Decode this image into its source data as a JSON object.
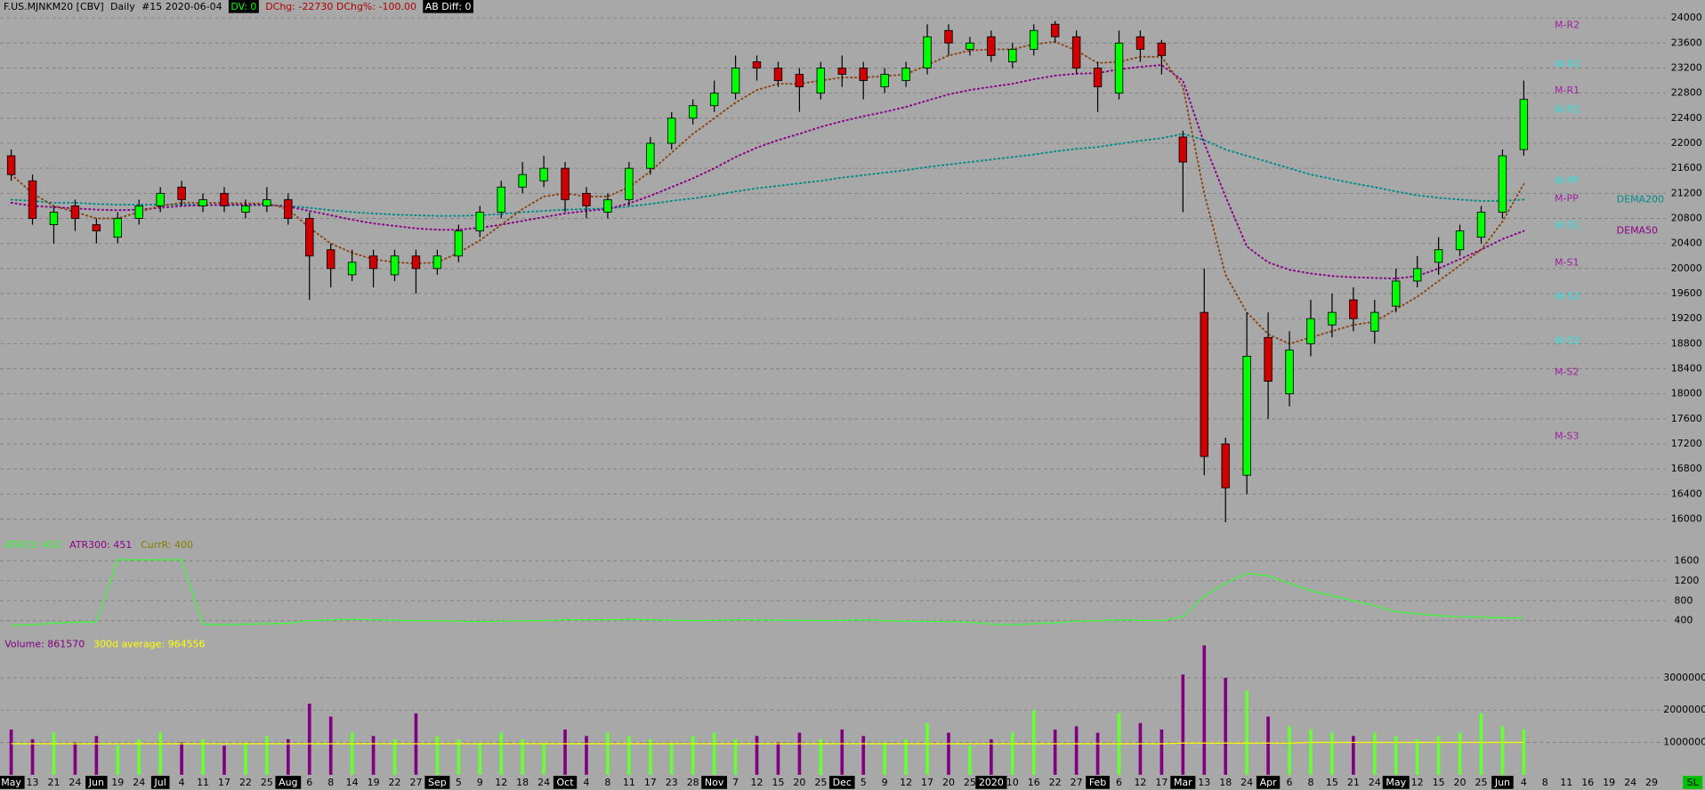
{
  "chart_data": [
    {
      "type": "candlestick",
      "title": "F.US.MJNKM20 [CBV]",
      "interval": "Daily",
      "bar_label": "#15 2020-06-04",
      "dv": "DV: 0",
      "dchg": "DChg: -22730 DChg%: -100.00",
      "ab_diff": "AB Diff: 0",
      "categories": [
        "May",
        "13",
        "21",
        "24",
        "Jun",
        "19",
        "24",
        "Jul",
        "4",
        "11",
        "17",
        "22",
        "25",
        "Aug",
        "6",
        "8",
        "14",
        "19",
        "22",
        "27",
        "Sep",
        "5",
        "9",
        "12",
        "18",
        "24",
        "Oct",
        "4",
        "8",
        "11",
        "17",
        "23",
        "28",
        "Nov",
        "7",
        "12",
        "15",
        "20",
        "25",
        "Dec",
        "5",
        "9",
        "12",
        "17",
        "20",
        "25",
        "2020",
        "10",
        "16",
        "22",
        "27",
        "Feb",
        "6",
        "12",
        "17",
        "Mar",
        "13",
        "18",
        "24",
        "Apr",
        "6",
        "8",
        "15",
        "21",
        "24",
        "May",
        "12",
        "15",
        "20",
        "25",
        "Jun",
        "4",
        "8",
        "11",
        "16",
        "19",
        "24",
        "29"
      ],
      "open": [
        21800,
        21400,
        20700,
        21000,
        20700,
        20500,
        20800,
        21000,
        21300,
        21000,
        21200,
        20900,
        21000,
        21100,
        20800,
        20300,
        19900,
        20200,
        19900,
        20200,
        20000,
        20200,
        20600,
        20900,
        21300,
        21400,
        21600,
        21200,
        20900,
        21100,
        21600,
        22000,
        22400,
        22600,
        22800,
        23300,
        23200,
        23100,
        22800,
        23200,
        23200,
        22900,
        23000,
        23200,
        23800,
        23500,
        23700,
        23300,
        23500,
        23900,
        23700,
        23200,
        22800,
        23700,
        23600,
        22100,
        19300,
        17200,
        16700,
        18900,
        18000,
        18800,
        19100,
        19500,
        19000,
        19400,
        19800,
        20100,
        20300,
        20500,
        20900,
        21900,
        null,
        null,
        null,
        null,
        null,
        null
      ],
      "high": [
        21900,
        21500,
        21000,
        21100,
        20800,
        20900,
        21100,
        21300,
        21400,
        21200,
        21300,
        21100,
        21300,
        21200,
        20900,
        20400,
        20300,
        20300,
        20300,
        20300,
        20300,
        20700,
        21000,
        21400,
        21700,
        21800,
        21700,
        21300,
        21200,
        21700,
        22100,
        22500,
        22700,
        23000,
        23400,
        23400,
        23300,
        23200,
        23300,
        23400,
        23300,
        23200,
        23300,
        23900,
        23900,
        23700,
        23800,
        23600,
        23900,
        23950,
        23800,
        23300,
        23800,
        23800,
        23650,
        22200,
        20000,
        17300,
        19300,
        19300,
        19000,
        19500,
        19600,
        19700,
        19500,
        20000,
        20200,
        20500,
        20700,
        21000,
        21900,
        23000,
        null,
        null,
        null,
        null,
        null,
        null
      ],
      "low": [
        21400,
        20700,
        20400,
        20600,
        20400,
        20400,
        20700,
        20900,
        21000,
        20900,
        20900,
        20800,
        20900,
        20700,
        19500,
        19700,
        19800,
        19700,
        19800,
        19600,
        19900,
        20100,
        20500,
        20800,
        21200,
        21300,
        20900,
        20800,
        20800,
        21000,
        21500,
        21900,
        22300,
        22500,
        22700,
        23000,
        22900,
        22500,
        22700,
        22900,
        22700,
        22800,
        22900,
        23100,
        23400,
        23400,
        23300,
        23200,
        23400,
        23600,
        23100,
        22500,
        22700,
        23300,
        23100,
        20900,
        16700,
        15950,
        16400,
        17600,
        17800,
        18600,
        18900,
        19000,
        18800,
        19300,
        19700,
        19900,
        20200,
        20400,
        20800,
        21800,
        null,
        null,
        null,
        null,
        null,
        null
      ],
      "close": [
        21500,
        20800,
        20900,
        20800,
        20600,
        20800,
        21000,
        21200,
        21100,
        21100,
        21000,
        21000,
        21100,
        20800,
        20200,
        20000,
        20100,
        20000,
        20200,
        20000,
        20200,
        20600,
        20900,
        21300,
        21500,
        21600,
        21100,
        21000,
        21100,
        21600,
        22000,
        22400,
        22600,
        22800,
        23200,
        23200,
        23000,
        22900,
        23200,
        23100,
        23000,
        23100,
        23200,
        23700,
        23600,
        23600,
        23400,
        23500,
        23800,
        23700,
        23200,
        22900,
        23600,
        23500,
        23400,
        21700,
        17000,
        16500,
        18600,
        18200,
        18700,
        19200,
        19300,
        19200,
        19300,
        19800,
        20000,
        20300,
        20600,
        20900,
        21800,
        22700,
        null,
        null,
        null,
        null,
        null,
        null
      ],
      "up_color": "#00ff00",
      "down_color": "#d00000",
      "ylim": [
        15700,
        24200
      ],
      "yticks": [
        16000,
        16400,
        16800,
        17200,
        17600,
        18000,
        18400,
        18800,
        19200,
        19600,
        20000,
        20400,
        20800,
        21200,
        21600,
        22000,
        22400,
        22800,
        23200,
        23600,
        24000
      ],
      "grid": true,
      "series": [
        {
          "name": "DEMA200",
          "color": "#008b8b",
          "values": [
            21100,
            21080,
            21050,
            21050,
            21030,
            21020,
            21020,
            21020,
            21020,
            21020,
            21010,
            21010,
            21010,
            21000,
            20970,
            20930,
            20900,
            20880,
            20860,
            20850,
            20840,
            20840,
            20850,
            20870,
            20900,
            20920,
            20940,
            20950,
            20960,
            20990,
            21030,
            21080,
            21120,
            21170,
            21230,
            21280,
            21320,
            21360,
            21400,
            21450,
            21490,
            21530,
            21570,
            21620,
            21660,
            21700,
            21740,
            21780,
            21820,
            21870,
            21910,
            21940,
            21990,
            22040,
            22080,
            22150,
            22050,
            21900,
            21800,
            21700,
            21600,
            21500,
            21430,
            21360,
            21300,
            21230,
            21170,
            21130,
            21100,
            21080,
            21080,
            21100,
            null,
            null,
            null,
            null,
            null,
            null
          ]
        },
        {
          "name": "DEMA50",
          "color": "#8b008b",
          "values": [
            21050,
            21000,
            20980,
            20960,
            20940,
            20930,
            20940,
            20970,
            21000,
            21010,
            21020,
            21020,
            21020,
            20990,
            20920,
            20850,
            20780,
            20720,
            20680,
            20640,
            20620,
            20620,
            20650,
            20700,
            20760,
            20820,
            20880,
            20920,
            20950,
            21040,
            21160,
            21300,
            21440,
            21600,
            21780,
            21930,
            22050,
            22150,
            22260,
            22350,
            22430,
            22500,
            22580,
            22680,
            22780,
            22850,
            22900,
            22950,
            23020,
            23080,
            23110,
            23120,
            23180,
            23220,
            23250,
            23000,
            22000,
            21150,
            20350,
            20100,
            19980,
            19920,
            19880,
            19860,
            19850,
            19840,
            19880,
            20000,
            20150,
            20300,
            20470,
            20600,
            null,
            null,
            null,
            null,
            null,
            null
          ]
        },
        {
          "color": "#8b4513",
          "values": [
            21500,
            21200,
            21000,
            20900,
            20800,
            20800,
            20900,
            21000,
            21050,
            21050,
            21050,
            21040,
            21040,
            20950,
            20650,
            20400,
            20250,
            20150,
            20100,
            20080,
            20100,
            20250,
            20450,
            20700,
            20950,
            21150,
            21200,
            21150,
            21150,
            21300,
            21550,
            21850,
            22150,
            22400,
            22650,
            22850,
            22950,
            22950,
            23000,
            23050,
            23050,
            23070,
            23100,
            23250,
            23400,
            23480,
            23500,
            23500,
            23580,
            23620,
            23480,
            23280,
            23300,
            23380,
            23380,
            22900,
            21200,
            19900,
            19300,
            18950,
            18800,
            18900,
            19000,
            19100,
            19150,
            19350,
            19550,
            19800,
            20050,
            20300,
            20750,
            21350,
            null,
            null,
            null,
            null,
            null,
            null
          ]
        }
      ],
      "pivots": [
        {
          "label": "M-R2",
          "value": 23880,
          "color": "#a020a0"
        },
        {
          "label": "W-R2",
          "value": 23255,
          "color": "#33e0e0"
        },
        {
          "label": "M-R1",
          "value": 22840,
          "color": "#a020a0"
        },
        {
          "label": "W-R1",
          "value": 22530,
          "color": "#33e0e0"
        },
        {
          "label": "W-PP",
          "value": 21400,
          "color": "#33e0e0"
        },
        {
          "label": "M-PP",
          "value": 21110,
          "color": "#a020a0"
        },
        {
          "label": "W-S1",
          "value": 20690,
          "color": "#33e0e0"
        },
        {
          "label": "M-S1",
          "value": 20090,
          "color": "#a020a0"
        },
        {
          "label": "W-S2",
          "value": 19550,
          "color": "#33e0e0"
        },
        {
          "label": "W-S3",
          "value": 18840,
          "color": "#33e0e0"
        },
        {
          "label": "M-S2",
          "value": 18340,
          "color": "#a020a0"
        },
        {
          "label": "M-S3",
          "value": 17320,
          "color": "#a020a0"
        }
      ]
    },
    {
      "type": "line",
      "legend": [
        {
          "label": "ATR15: 452",
          "color": "#33ff33"
        },
        {
          "label": "ATR300: 451",
          "color": "#8b008b"
        },
        {
          "label": "CurrR: 400",
          "color": "#808000"
        }
      ],
      "color": "#33ff33",
      "values": [
        300,
        320,
        350,
        370,
        380,
        1620,
        1620,
        1620,
        1620,
        330,
        320,
        330,
        340,
        350,
        400,
        420,
        430,
        420,
        410,
        400,
        400,
        390,
        380,
        390,
        400,
        400,
        420,
        420,
        420,
        430,
        420,
        410,
        400,
        410,
        420,
        420,
        410,
        410,
        400,
        410,
        420,
        400,
        390,
        390,
        380,
        370,
        330,
        320,
        340,
        360,
        390,
        400,
        420,
        410,
        400,
        480,
        900,
        1150,
        1350,
        1300,
        1150,
        1000,
        900,
        800,
        700,
        580,
        540,
        500,
        480,
        470,
        460,
        450,
        null,
        null,
        null,
        null,
        null,
        null
      ],
      "ylim": [
        100,
        1950
      ],
      "yticks": [
        400,
        800,
        1200,
        1600
      ],
      "grid": true
    },
    {
      "type": "bar",
      "legend": [
        {
          "label": "Volume: 861570",
          "color": "#800080"
        },
        {
          "label": "300d average: 964556",
          "color": "#ffff00"
        }
      ],
      "values": [
        1400000,
        1100000,
        1300000,
        1000000,
        1200000,
        900000,
        1100000,
        1300000,
        1000000,
        1100000,
        900000,
        1000000,
        1200000,
        1100000,
        2200000,
        1800000,
        1300000,
        1200000,
        1100000,
        1900000,
        1200000,
        1100000,
        1000000,
        1300000,
        1100000,
        1000000,
        1400000,
        1200000,
        1300000,
        1200000,
        1100000,
        1000000,
        1200000,
        1300000,
        1100000,
        1200000,
        1000000,
        1300000,
        1100000,
        1400000,
        1200000,
        1000000,
        1100000,
        1600000,
        1300000,
        900000,
        1100000,
        1300000,
        2000000,
        1400000,
        1500000,
        1300000,
        1900000,
        1600000,
        1400000,
        3100000,
        4000000,
        3000000,
        2600000,
        1800000,
        1500000,
        1400000,
        1300000,
        1200000,
        1300000,
        1200000,
        1100000,
        1200000,
        1300000,
        1900000,
        1500000,
        1400000,
        null,
        null,
        null,
        null,
        null,
        null
      ],
      "average": [
        960000,
        960000,
        960000,
        960000,
        960000,
        960000,
        960000,
        960000,
        960000,
        960000,
        960000,
        960000,
        960000,
        960000,
        960000,
        960000,
        960000,
        960000,
        960000,
        960000,
        960000,
        960000,
        960000,
        960000,
        960000,
        960000,
        960000,
        960000,
        960000,
        960000,
        960000,
        960000,
        960000,
        960000,
        960000,
        960000,
        960000,
        960000,
        960000,
        960000,
        960000,
        960000,
        960000,
        960000,
        960000,
        960000,
        960000,
        960000,
        960000,
        960000,
        960000,
        960000,
        960000,
        960000,
        960000,
        980000,
        980000,
        980000,
        980000,
        980000,
        980000,
        1000000,
        1000000,
        1000000,
        1000000,
        1000000,
        1000000,
        1000000,
        1000000,
        1000000,
        1000000,
        1000000,
        null,
        null,
        null,
        null,
        null,
        null
      ],
      "up_color": "#66ff33",
      "down_color": "#800080",
      "average_color": "#ffff00",
      "ylim": [
        0,
        4200000
      ],
      "yticks": [
        1000000,
        2000000,
        3000000
      ],
      "grid": true
    }
  ],
  "status": "SL"
}
